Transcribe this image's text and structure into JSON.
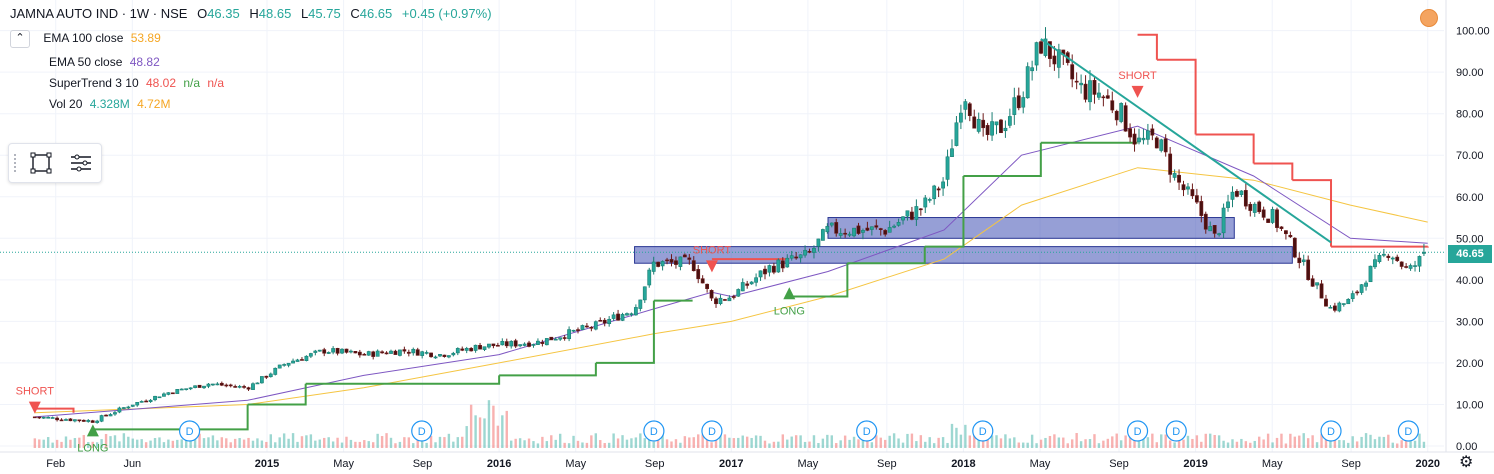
{
  "header": {
    "symbol": "JAMNA AUTO IND · 1W · NSE",
    "open_label": "O",
    "open": "46.35",
    "high_label": "H",
    "high": "48.65",
    "low_label": "L",
    "low": "45.75",
    "close_label": "C",
    "close": "46.65",
    "change": "+0.45 (+0.97%)"
  },
  "legend": {
    "collapse_glyph": "⌃",
    "items": [
      {
        "name": "EMA 100 close",
        "value": "53.89",
        "color": "#f5c542"
      },
      {
        "name": "EMA 50 close",
        "value": "48.82",
        "color": "#7e57c2"
      },
      {
        "name": "SuperTrend 3 10",
        "value": "48.02",
        "extra1": "n/a",
        "extra2": "n/a",
        "color": "#ef5350"
      },
      {
        "name": "Vol 20",
        "value": "4.328M",
        "value2": "4.72M",
        "color": "#26a69a"
      }
    ]
  },
  "last_price": "46.65",
  "colors": {
    "up": "#26a69a",
    "down": "#ef5350",
    "candle_down_fill": "#4a1010",
    "ema100": "#f5c542",
    "ema50": "#7e57c2",
    "st_up": "#43a047",
    "st_down": "#ef5350",
    "zone_fill": "#3f51b5",
    "trendline": "#26a69a",
    "grid": "#f0f3fa"
  },
  "chart_data": {
    "type": "candlestick",
    "title": "JAMNA AUTO IND · 1W · NSE",
    "x_ticks": [
      "Feb",
      "Jun",
      "2015",
      "May",
      "Sep",
      "2016",
      "May",
      "Sep",
      "2017",
      "May",
      "Sep",
      "2018",
      "May",
      "Sep",
      "2019",
      "May",
      "Sep",
      "2020"
    ],
    "y_ticks": [
      "0.00",
      "10.00",
      "20.00",
      "30.00",
      "40.00",
      "50.00",
      "60.00",
      "70.00",
      "80.00",
      "90.00",
      "100.00"
    ],
    "ylim": [
      0,
      104
    ],
    "volume_axis_max_millions": 20,
    "close_path": [
      {
        "t": "2014-01",
        "close": 7
      },
      {
        "t": "2014-04",
        "close": 6
      },
      {
        "t": "2014-06",
        "close": 10
      },
      {
        "t": "2014-08",
        "close": 13
      },
      {
        "t": "2014-10",
        "close": 15
      },
      {
        "t": "2014-12",
        "close": 14
      },
      {
        "t": "2015-02",
        "close": 20
      },
      {
        "t": "2015-04",
        "close": 23
      },
      {
        "t": "2015-06",
        "close": 22
      },
      {
        "t": "2015-08",
        "close": 23
      },
      {
        "t": "2015-10",
        "close": 22
      },
      {
        "t": "2015-12",
        "close": 24
      },
      {
        "t": "2016-03",
        "close": 25
      },
      {
        "t": "2016-06",
        "close": 29
      },
      {
        "t": "2016-08",
        "close": 33
      },
      {
        "t": "2016-09",
        "close": 44
      },
      {
        "t": "2016-10",
        "close": 44
      },
      {
        "t": "2016-11",
        "close": 44
      },
      {
        "t": "2016-12",
        "close": 35
      },
      {
        "t": "2017-01",
        "close": 36
      },
      {
        "t": "2017-03",
        "close": 43
      },
      {
        "t": "2017-05",
        "close": 46
      },
      {
        "t": "2017-06",
        "close": 52
      },
      {
        "t": "2017-09",
        "close": 52
      },
      {
        "t": "2017-11",
        "close": 58
      },
      {
        "t": "2017-12",
        "close": 64
      },
      {
        "t": "2018-01",
        "close": 86
      },
      {
        "t": "2018-02",
        "close": 74
      },
      {
        "t": "2018-03",
        "close": 77
      },
      {
        "t": "2018-04",
        "close": 85
      },
      {
        "t": "2018-05",
        "close": 97
      },
      {
        "t": "2018-06",
        "close": 92
      },
      {
        "t": "2018-07",
        "close": 86
      },
      {
        "t": "2018-08",
        "close": 85
      },
      {
        "t": "2018-09",
        "close": 81
      },
      {
        "t": "2018-10",
        "close": 73
      },
      {
        "t": "2018-11",
        "close": 74
      },
      {
        "t": "2018-12",
        "close": 64
      },
      {
        "t": "2019-01",
        "close": 58
      },
      {
        "t": "2019-02",
        "close": 50
      },
      {
        "t": "2019-03",
        "close": 62
      },
      {
        "t": "2019-04",
        "close": 58
      },
      {
        "t": "2019-05",
        "close": 55
      },
      {
        "t": "2019-06",
        "close": 48
      },
      {
        "t": "2019-07",
        "close": 40
      },
      {
        "t": "2019-08",
        "close": 33
      },
      {
        "t": "2019-09",
        "close": 35
      },
      {
        "t": "2019-10",
        "close": 42
      },
      {
        "t": "2019-11",
        "close": 47
      },
      {
        "t": "2019-12",
        "close": 42
      },
      {
        "t": "2020-01",
        "close": 46.65
      }
    ],
    "ema100": [
      {
        "t": "2014-01",
        "v": 8
      },
      {
        "t": "2014-12",
        "v": 10
      },
      {
        "t": "2015-06",
        "v": 14
      },
      {
        "t": "2016-01",
        "v": 20
      },
      {
        "t": "2016-09",
        "v": 27
      },
      {
        "t": "2017-01",
        "v": 30
      },
      {
        "t": "2017-06",
        "v": 36
      },
      {
        "t": "2017-12",
        "v": 45
      },
      {
        "t": "2018-04",
        "v": 58
      },
      {
        "t": "2018-10",
        "v": 67
      },
      {
        "t": "2019-04",
        "v": 64
      },
      {
        "t": "2019-09",
        "v": 58
      },
      {
        "t": "2020-01",
        "v": 53.89
      }
    ],
    "ema50": [
      {
        "t": "2014-01",
        "v": 7
      },
      {
        "t": "2014-12",
        "v": 11
      },
      {
        "t": "2015-06",
        "v": 17
      },
      {
        "t": "2016-01",
        "v": 22
      },
      {
        "t": "2016-09",
        "v": 33
      },
      {
        "t": "2016-12",
        "v": 37
      },
      {
        "t": "2017-01",
        "v": 36
      },
      {
        "t": "2017-06",
        "v": 42
      },
      {
        "t": "2017-12",
        "v": 52
      },
      {
        "t": "2018-04",
        "v": 70
      },
      {
        "t": "2018-10",
        "v": 77
      },
      {
        "t": "2019-04",
        "v": 65
      },
      {
        "t": "2019-09",
        "v": 50
      },
      {
        "t": "2020-01",
        "v": 48.82
      }
    ],
    "supertrend": [
      {
        "t": "2014-01",
        "v": 9,
        "dir": "down"
      },
      {
        "t": "2014-03",
        "v": 8,
        "dir": "down"
      },
      {
        "t": "2014-04",
        "v": 4,
        "dir": "up"
      },
      {
        "t": "2014-12",
        "v": 10,
        "dir": "up"
      },
      {
        "t": "2015-03",
        "v": 15,
        "dir": "up"
      },
      {
        "t": "2016-01",
        "v": 17,
        "dir": "up"
      },
      {
        "t": "2016-06",
        "v": 20,
        "dir": "up"
      },
      {
        "t": "2016-09",
        "v": 35,
        "dir": "up"
      },
      {
        "t": "2016-11",
        "v": 35,
        "dir": "up"
      },
      {
        "t": "2016-12",
        "v": 45,
        "dir": "down"
      },
      {
        "t": "2017-04",
        "v": 45,
        "dir": "down"
      },
      {
        "t": "2017-04",
        "v": 36,
        "dir": "up"
      },
      {
        "t": "2017-07",
        "v": 44,
        "dir": "up"
      },
      {
        "t": "2017-11",
        "v": 48,
        "dir": "up"
      },
      {
        "t": "2018-01",
        "v": 65,
        "dir": "up"
      },
      {
        "t": "2018-05",
        "v": 73,
        "dir": "up"
      },
      {
        "t": "2018-10",
        "v": 73,
        "dir": "up"
      },
      {
        "t": "2018-10",
        "v": 99,
        "dir": "down"
      },
      {
        "t": "2018-11",
        "v": 93,
        "dir": "down"
      },
      {
        "t": "2019-01",
        "v": 75,
        "dir": "down"
      },
      {
        "t": "2019-04",
        "v": 68,
        "dir": "down"
      },
      {
        "t": "2019-06",
        "v": 64,
        "dir": "down"
      },
      {
        "t": "2019-08",
        "v": 48,
        "dir": "down"
      },
      {
        "t": "2020-01",
        "v": 48.02,
        "dir": "down"
      }
    ],
    "zones": [
      {
        "t_start": "2016-08",
        "t_end": "2019-06",
        "low": 44,
        "high": 48
      },
      {
        "t_start": "2017-06",
        "t_end": "2019-03",
        "low": 50,
        "high": 55
      }
    ],
    "trendline": {
      "t_start": "2018-05",
      "v_start": 98,
      "t_end": "2019-08",
      "v_end": 49
    },
    "signals": [
      {
        "t": "2014-01",
        "type": "SHORT",
        "price": 9
      },
      {
        "t": "2014-04",
        "type": "LONG",
        "price": 4
      },
      {
        "t": "2016-12",
        "type": "SHORT",
        "price": 43
      },
      {
        "t": "2017-04",
        "type": "LONG",
        "price": 37
      },
      {
        "t": "2018-10",
        "type": "SHORT",
        "price": 85
      }
    ],
    "dividends": [
      "2014-09",
      "2015-09",
      "2016-09",
      "2016-12",
      "2017-08",
      "2018-02",
      "2018-10",
      "2018-12",
      "2019-08",
      "2019-12"
    ],
    "dividend_glyph": "D"
  }
}
